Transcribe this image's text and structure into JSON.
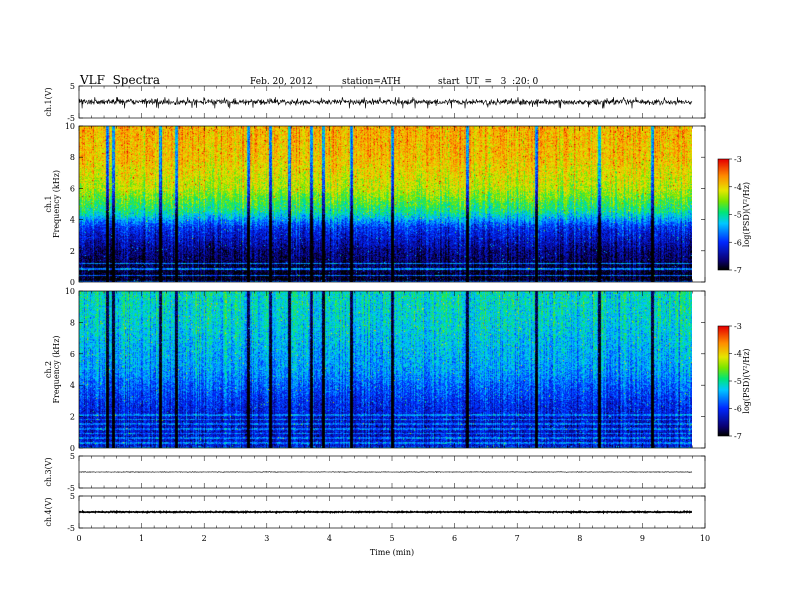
{
  "header": {
    "title": "VLF  Spectra",
    "date": "Feb. 20, 2012",
    "station": "station=ATH",
    "start": "start  UT  =   3  :20: 0"
  },
  "chart_data": [
    {
      "type": "line",
      "panel": "ch1-waveform",
      "ylabel": "ch.1(V)",
      "ylim": [
        -5,
        5
      ],
      "yticks": [
        "5",
        "-5"
      ],
      "xlim": [
        0,
        10
      ],
      "baseline": 0,
      "amplitude_range": [
        -2,
        1.5
      ],
      "spiky": true
    },
    {
      "type": "heatmap",
      "panel": "ch1-spectrogram",
      "ylabel_channel": "ch.1",
      "ylabel": "Frequency  (kHz)",
      "ylim": [
        0,
        10
      ],
      "yticks": [
        "0",
        "2",
        "4",
        "6",
        "8",
        "10"
      ],
      "xlim": [
        0,
        9.8
      ],
      "colorbar": {
        "label": "log(PSD)(V²/Hz)",
        "range": [
          -7,
          -3
        ],
        "ticks": [
          "-3",
          "-4",
          "-5",
          "-6",
          "-7"
        ],
        "colormap": "rainbow"
      },
      "profile_kHz_vs_logPSD": [
        [
          0,
          -7
        ],
        [
          2,
          -6.6
        ],
        [
          3.5,
          -6
        ],
        [
          4.5,
          -5
        ],
        [
          6,
          -4.3
        ],
        [
          8,
          -3.9
        ],
        [
          10,
          -3.8
        ]
      ],
      "vertical_streaks_min": [
        0.45,
        0.55,
        1.3,
        1.55,
        2.7,
        3.05,
        3.35,
        3.7,
        3.9,
        4.35,
        5.0,
        6.2,
        7.3,
        8.3,
        9.15
      ]
    },
    {
      "type": "heatmap",
      "panel": "ch2-spectrogram",
      "ylabel_channel": "ch.2",
      "ylabel": "Frequency  (kHz)",
      "ylim": [
        0,
        10
      ],
      "yticks": [
        "0",
        "2",
        "4",
        "6",
        "8",
        "10"
      ],
      "xlim": [
        0,
        9.8
      ],
      "colorbar": {
        "label": "log(PSD)(V²/Hz)",
        "range": [
          -7,
          -3
        ],
        "ticks": [
          "-3",
          "-4",
          "-5",
          "-6",
          "-7"
        ],
        "colormap": "rainbow"
      },
      "profile_kHz_vs_logPSD": [
        [
          0,
          -6.2
        ],
        [
          1.5,
          -6.3
        ],
        [
          3,
          -6.0
        ],
        [
          5,
          -5.5
        ],
        [
          8,
          -5.2
        ],
        [
          10,
          -5.1
        ]
      ],
      "vertical_streaks_min": [
        0.45,
        0.55,
        1.3,
        1.55,
        2.7,
        3.05,
        3.35,
        3.7,
        3.9,
        4.35,
        5.0,
        6.2,
        7.3,
        8.3,
        9.15
      ]
    },
    {
      "type": "line",
      "panel": "ch3-waveform",
      "ylabel": "ch.3(V)",
      "ylim": [
        -5,
        5
      ],
      "yticks": [
        "5",
        "-5"
      ],
      "xlim": [
        0,
        10
      ],
      "baseline": 0,
      "amplitude_range": [
        -0.2,
        0.2
      ],
      "spiky": false
    },
    {
      "type": "line",
      "panel": "ch4-waveform",
      "ylabel": "ch.4(V)",
      "ylim": [
        -5,
        5
      ],
      "yticks": [
        "5",
        "-5"
      ],
      "xlim": [
        0,
        10
      ],
      "baseline": 0,
      "amplitude_range": [
        -0.3,
        0.3
      ],
      "spiky": false
    }
  ],
  "xaxis": {
    "label": "Time  (min)",
    "ticks": [
      "0",
      "1",
      "2",
      "3",
      "4",
      "5",
      "6",
      "7",
      "8",
      "9",
      "10"
    ]
  }
}
